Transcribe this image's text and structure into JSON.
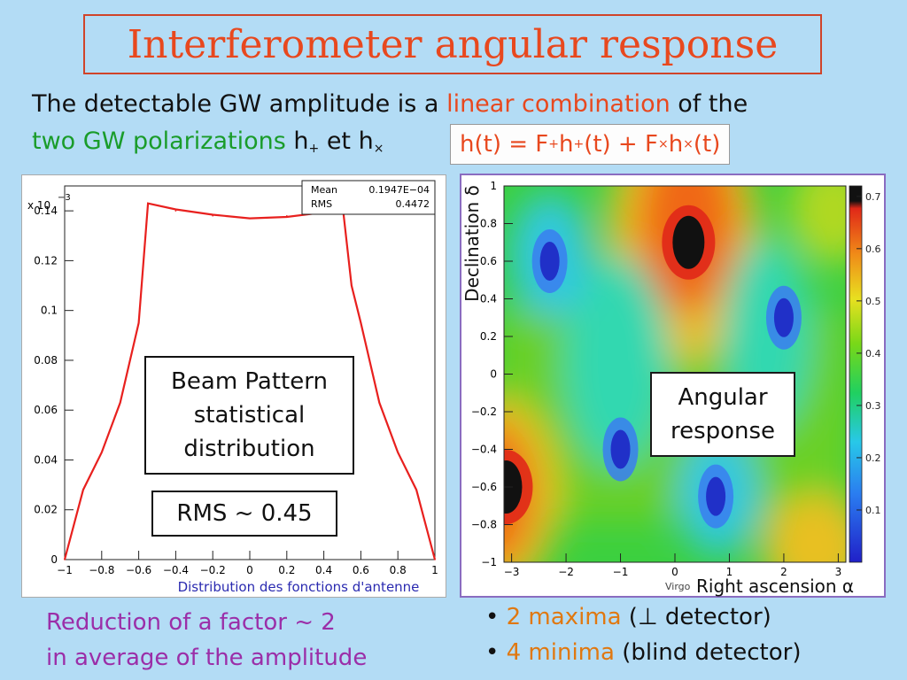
{
  "title": "Interferometer angular response",
  "intro": {
    "line1_a": "The detectable GW amplitude is a ",
    "line1_b": "linear combination",
    "line1_c": " of the",
    "line2_a": "two GW polarizations",
    "line2_b": " h",
    "sub_plus": "+",
    "line2_c": " et h",
    "sub_cross": "×"
  },
  "formula": {
    "p1": "h(t) = F",
    "p2": " h",
    "p3": "(t) + F",
    "p4": " h",
    "p5": "(t)",
    "sub_plus": "+",
    "sub_cross": "×"
  },
  "histogram": {
    "stats_labels": [
      "Mean",
      "RMS"
    ],
    "stats_values": [
      "0.1947E−04",
      "0.4472"
    ],
    "y_multiplier": "x 10",
    "y_multiplier_exp": "−3",
    "xlabel": "Distribution des fonctions d'antenne",
    "box_lines": [
      "Beam Pattern",
      "statistical",
      "distribution"
    ],
    "rms_label": "RMS ~ 0.45"
  },
  "map": {
    "ylabel": "Declination δ",
    "xlabel": "Right ascension α",
    "virgo_label": "Virgo",
    "box_lines": [
      "Angular",
      "response"
    ]
  },
  "bottom_left": [
    "Reduction of a factor ~ 2",
    "in average of the amplitude"
  ],
  "bullets": [
    {
      "dot": "• ",
      "highlight": "2 maxima",
      "rest": " (⊥ detector)"
    },
    {
      "dot": "• ",
      "highlight": "4 minima",
      "rest": " (blind detector)"
    }
  ],
  "chart_data": [
    {
      "type": "line",
      "x": [
        -1.0,
        -0.9,
        -0.8,
        -0.7,
        -0.6,
        -0.55,
        -0.4,
        -0.2,
        0.0,
        0.2,
        0.4,
        0.5,
        0.55,
        0.6,
        0.7,
        0.8,
        0.9,
        1.0
      ],
      "y": [
        0.0,
        0.028,
        0.043,
        0.063,
        0.095,
        0.143,
        0.14,
        0.138,
        0.137,
        0.138,
        0.14,
        0.143,
        0.11,
        0.095,
        0.063,
        0.043,
        0.028,
        0.0
      ],
      "xlim": [
        -1,
        1
      ],
      "ylim": [
        0,
        0.15
      ],
      "x_ticks": [
        "−1",
        "−0.8",
        "−0.6",
        "−0.4",
        "−0.2",
        "0",
        "0.2",
        "0.4",
        "0.6",
        "0.8",
        "1"
      ],
      "y_ticks": [
        "0",
        "0.02",
        "0.04",
        "0.06",
        "0.08",
        "0.1",
        "0.12",
        "0.14"
      ],
      "xlabel": "Distribution des fonctions d'antenne",
      "color": "#e8201e"
    },
    {
      "type": "heatmap",
      "xlim": [
        -3.14,
        3.14
      ],
      "ylim": [
        -1,
        1
      ],
      "x_ticks": [
        "−3",
        "−2",
        "−1",
        "0",
        "1",
        "2",
        "3"
      ],
      "y_ticks": [
        "−1",
        "−0.8",
        "−0.6",
        "−0.4",
        "−0.2",
        "0",
        "0.2",
        "0.4",
        "0.6",
        "0.8",
        "1"
      ],
      "colorbar_ticks": [
        "0.1",
        "0.2",
        "0.3",
        "0.4",
        "0.5",
        "0.6",
        "0.7"
      ],
      "colorbar_range": [
        0,
        0.72
      ],
      "maxima": [
        {
          "x": 0.25,
          "y": 0.7
        },
        {
          "x": -3.1,
          "y": -0.6
        }
      ],
      "minima": [
        {
          "x": -2.3,
          "y": 0.6
        },
        {
          "x": 2.0,
          "y": 0.3
        },
        {
          "x": -1.0,
          "y": -0.4
        },
        {
          "x": 0.75,
          "y": -0.65
        }
      ],
      "xlabel": "Right ascension α",
      "ylabel": "Declination δ"
    }
  ]
}
